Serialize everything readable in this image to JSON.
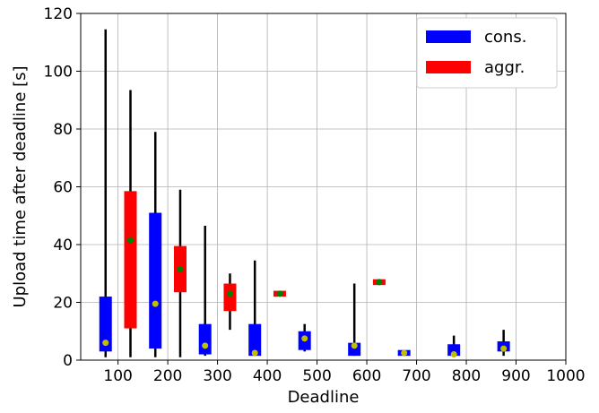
{
  "chart_data": {
    "type": "box",
    "xlabel": "Deadline",
    "ylabel": "Upload time after deadline [s]",
    "xlim": [
      25,
      1000
    ],
    "ylim": [
      0,
      120
    ],
    "x_ticks": [
      100,
      200,
      300,
      400,
      500,
      600,
      700,
      800,
      900,
      1000
    ],
    "y_ticks": [
      0,
      20,
      40,
      60,
      80,
      100,
      120
    ],
    "grid": true,
    "legend_position": "top-right",
    "series": [
      {
        "name": "cons.",
        "color": "#0000ff",
        "marker_color": "#bfbf00",
        "boxes": [
          {
            "x": 75,
            "min": 1,
            "q1": 3,
            "q3": 22,
            "max": 114.5,
            "mean": 6
          },
          {
            "x": 175,
            "min": 1,
            "q1": 4,
            "q3": 51,
            "max": 79,
            "mean": 19.5
          },
          {
            "x": 275,
            "min": 1.5,
            "q1": 2,
            "q3": 12.5,
            "max": 46.5,
            "mean": 5
          },
          {
            "x": 375,
            "min": 1.5,
            "q1": 1.5,
            "q3": 12.5,
            "max": 34.5,
            "mean": 2.5
          },
          {
            "x": 475,
            "min": 3,
            "q1": 3.5,
            "q3": 10,
            "max": 12.5,
            "mean": 7.5
          },
          {
            "x": 575,
            "min": 1.5,
            "q1": 1.5,
            "q3": 6,
            "max": 26.5,
            "mean": 5
          },
          {
            "x": 675,
            "min": 1.5,
            "q1": 1.5,
            "q3": 3.5,
            "max": 3.5,
            "mean": 2.5
          },
          {
            "x": 775,
            "min": 1.5,
            "q1": 1.5,
            "q3": 5.5,
            "max": 8.5,
            "mean": 2
          },
          {
            "x": 875,
            "min": 1.5,
            "q1": 3,
            "q3": 6.5,
            "max": 10.5,
            "mean": 4
          }
        ]
      },
      {
        "name": "aggr.",
        "color": "#ff0000",
        "marker_color": "#008000",
        "boxes": [
          {
            "x": 125,
            "min": 1,
            "q1": 11,
            "q3": 58.5,
            "max": 93.5,
            "mean": 41.5
          },
          {
            "x": 225,
            "min": 1,
            "q1": 23.5,
            "q3": 39.5,
            "max": 59,
            "mean": 31.5
          },
          {
            "x": 325,
            "min": 10.5,
            "q1": 17,
            "q3": 26.5,
            "max": 30,
            "mean": 23
          },
          {
            "x": 425,
            "min": 22,
            "q1": 22,
            "q3": 24,
            "max": 24,
            "mean": 23
          },
          {
            "x": 625,
            "min": 26,
            "q1": 26,
            "q3": 28,
            "max": 28,
            "mean": 27
          }
        ]
      }
    ]
  }
}
